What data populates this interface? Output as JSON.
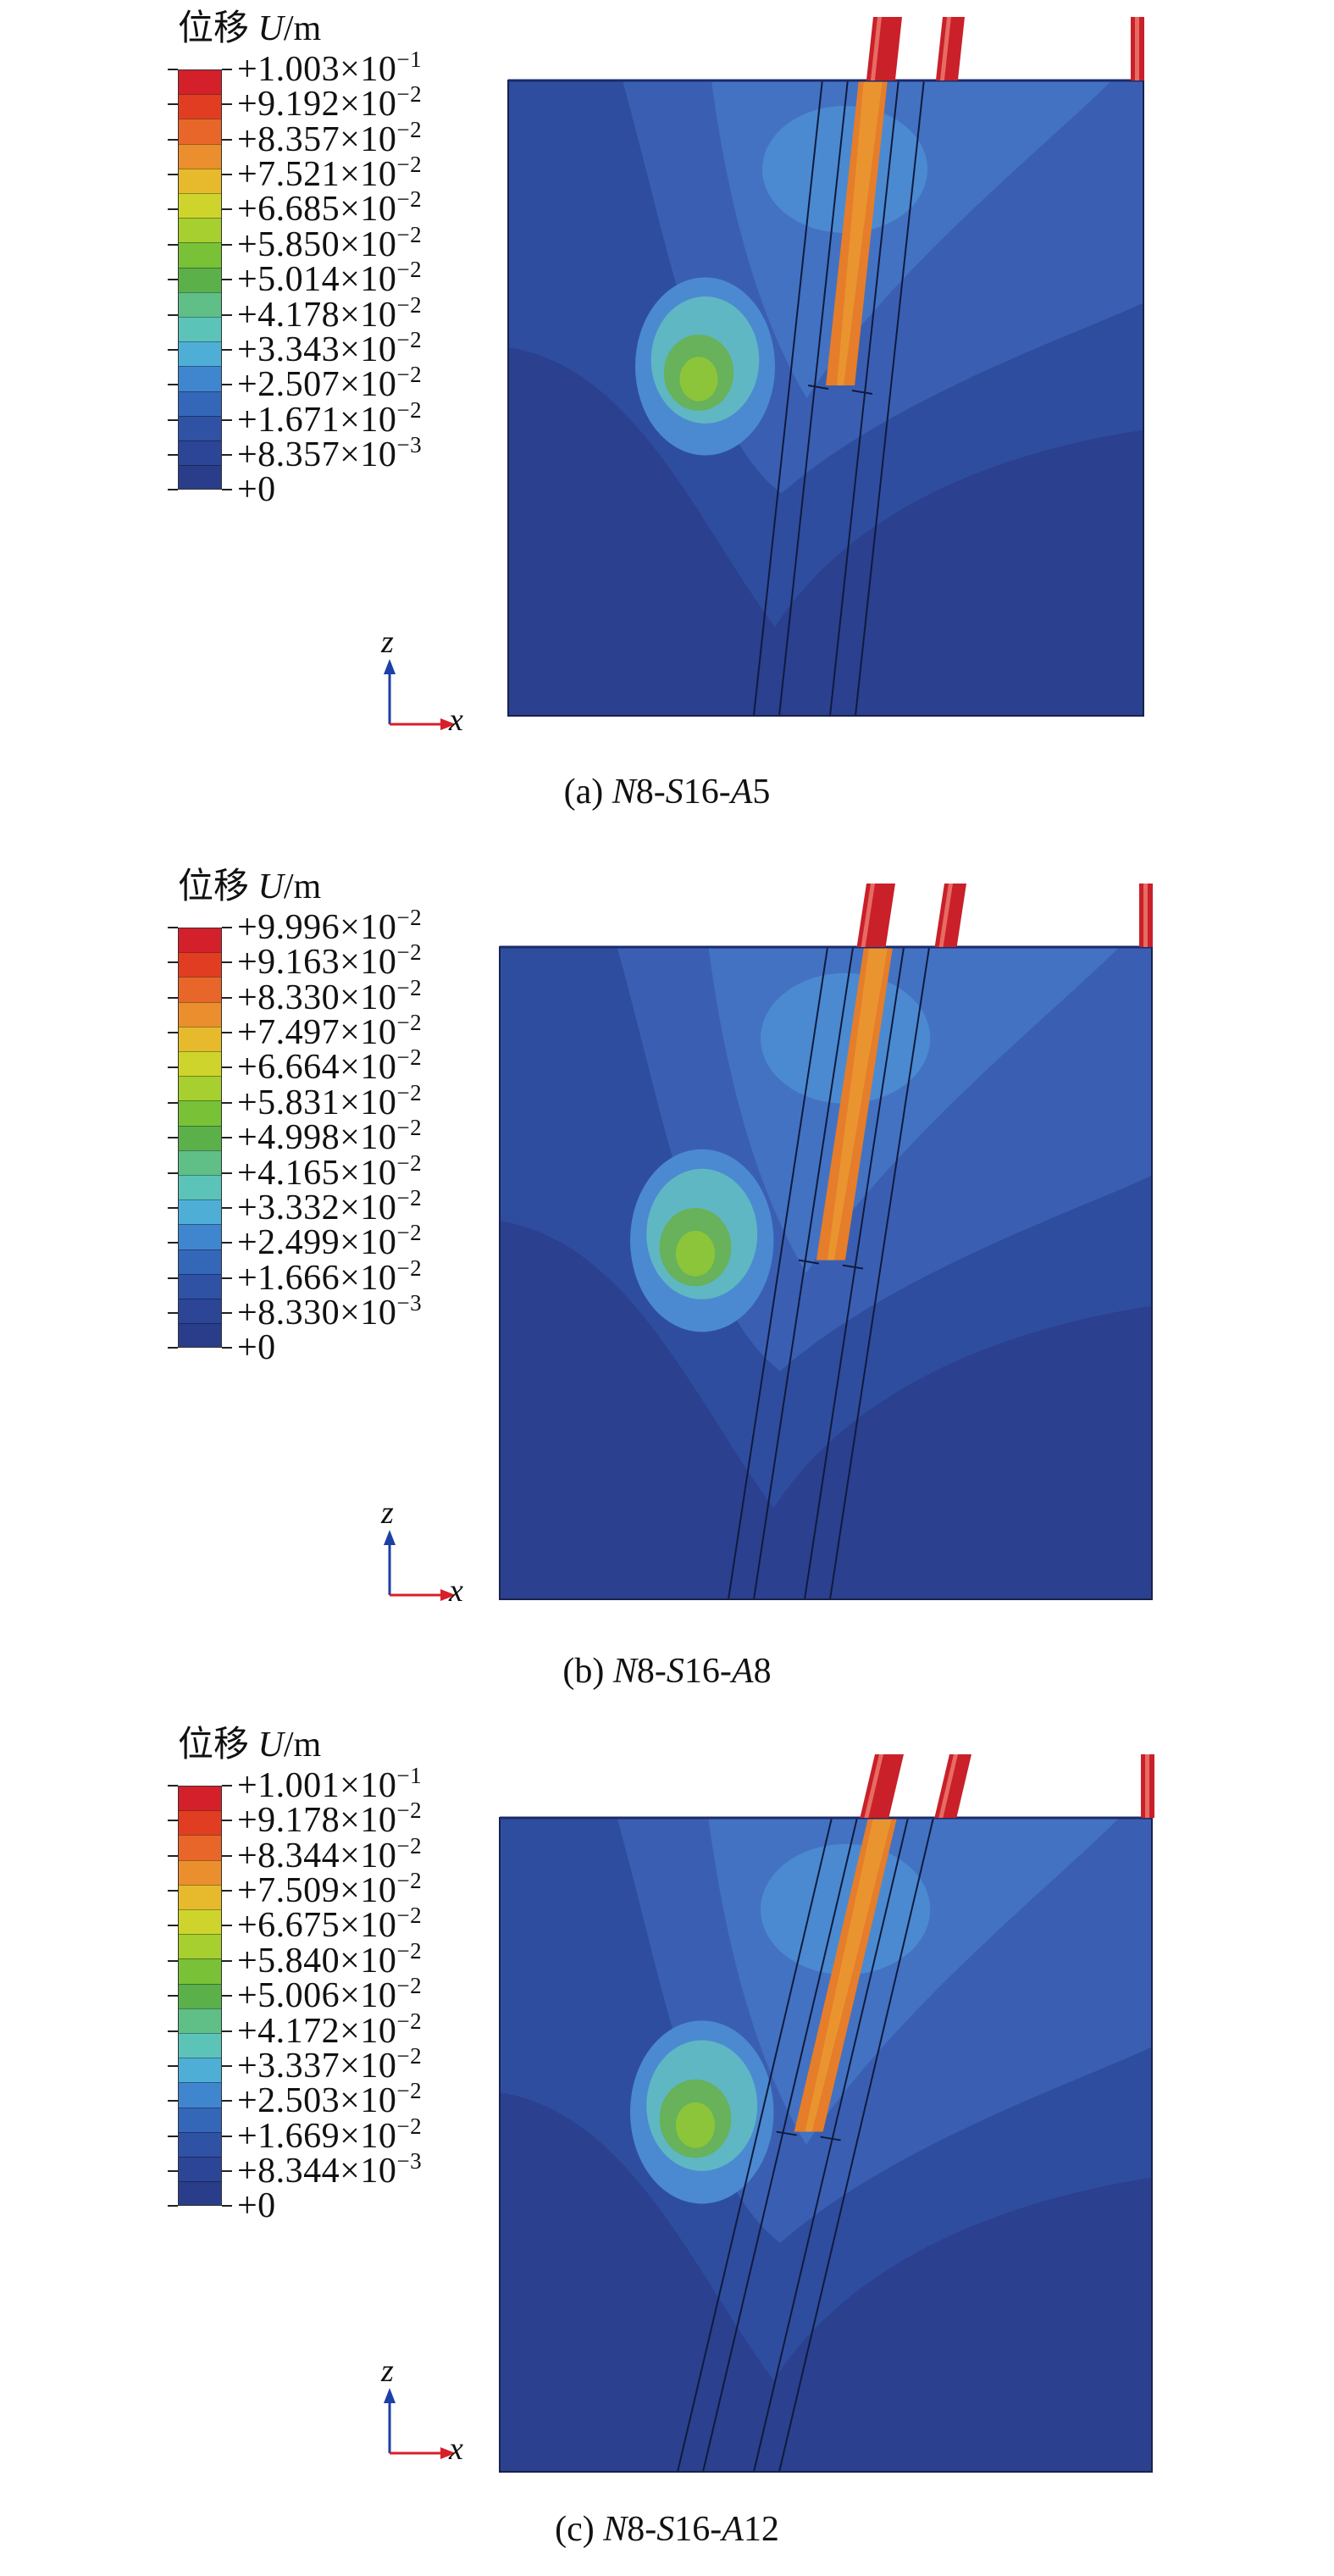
{
  "figure": {
    "panels": [
      {
        "id": "a",
        "legend_title": "位移",
        "legend_symbol": "U",
        "legend_unit": "/m",
        "legend_labels": [
          "+1.003×10",
          "+9.192×10",
          "+8.357×10",
          "+7.521×10",
          "+6.685×10",
          "+5.850×10",
          "+5.014×10",
          "+4.178×10",
          "+3.343×10",
          "+2.507×10",
          "+1.671×10",
          "+8.357×10",
          "+0"
        ],
        "legend_exps": [
          "−1",
          "−2",
          "−2",
          "−2",
          "−2",
          "−2",
          "−2",
          "−2",
          "−2",
          "−2",
          "−2",
          "−3",
          ""
        ],
        "axis_z": "z",
        "axis_x": "x",
        "caption_prefix": "(a) ",
        "caption_parts": [
          "N",
          "8-",
          "S",
          "16-",
          "A",
          "5"
        ]
      },
      {
        "id": "b",
        "legend_title": "位移",
        "legend_symbol": "U",
        "legend_unit": "/m",
        "legend_labels": [
          "+9.996×10",
          "+9.163×10",
          "+8.330×10",
          "+7.497×10",
          "+6.664×10",
          "+5.831×10",
          "+4.998×10",
          "+4.165×10",
          "+3.332×10",
          "+2.499×10",
          "+1.666×10",
          "+8.330×10",
          "+0"
        ],
        "legend_exps": [
          "−2",
          "−2",
          "−2",
          "−2",
          "−2",
          "−2",
          "−2",
          "−2",
          "−2",
          "−2",
          "−2",
          "−3",
          ""
        ],
        "axis_z": "z",
        "axis_x": "x",
        "caption_prefix": "(b) ",
        "caption_parts": [
          "N",
          "8-",
          "S",
          "16-",
          "A",
          "8"
        ]
      },
      {
        "id": "c",
        "legend_title": "位移",
        "legend_symbol": "U",
        "legend_unit": "/m",
        "legend_labels": [
          "+1.001×10",
          "+9.178×10",
          "+8.344×10",
          "+7.509×10",
          "+6.675×10",
          "+5.840×10",
          "+5.006×10",
          "+4.172×10",
          "+3.337×10",
          "+2.503×10",
          "+1.669×10",
          "+8.344×10",
          "+0"
        ],
        "legend_exps": [
          "−1",
          "−2",
          "−2",
          "−2",
          "−2",
          "−2",
          "−2",
          "−2",
          "−2",
          "−2",
          "−2",
          "−3",
          ""
        ],
        "axis_z": "z",
        "axis_x": "x",
        "caption_prefix": "(c) ",
        "caption_parts": [
          "N",
          "8-",
          "S",
          "16-",
          "A",
          "12"
        ]
      }
    ],
    "colormap": [
      "#d4202a",
      "#e03d22",
      "#e8662a",
      "#eb8e2d",
      "#e6ba2c",
      "#cfd42d",
      "#a7cf2f",
      "#79c137",
      "#5bb04a",
      "#5fbf86",
      "#5cc3b8",
      "#4faed6",
      "#3f86cf",
      "#3567b9",
      "#2f52a5",
      "#2c4596",
      "#2a3d8b"
    ],
    "background_color": "#2f4b9c"
  }
}
